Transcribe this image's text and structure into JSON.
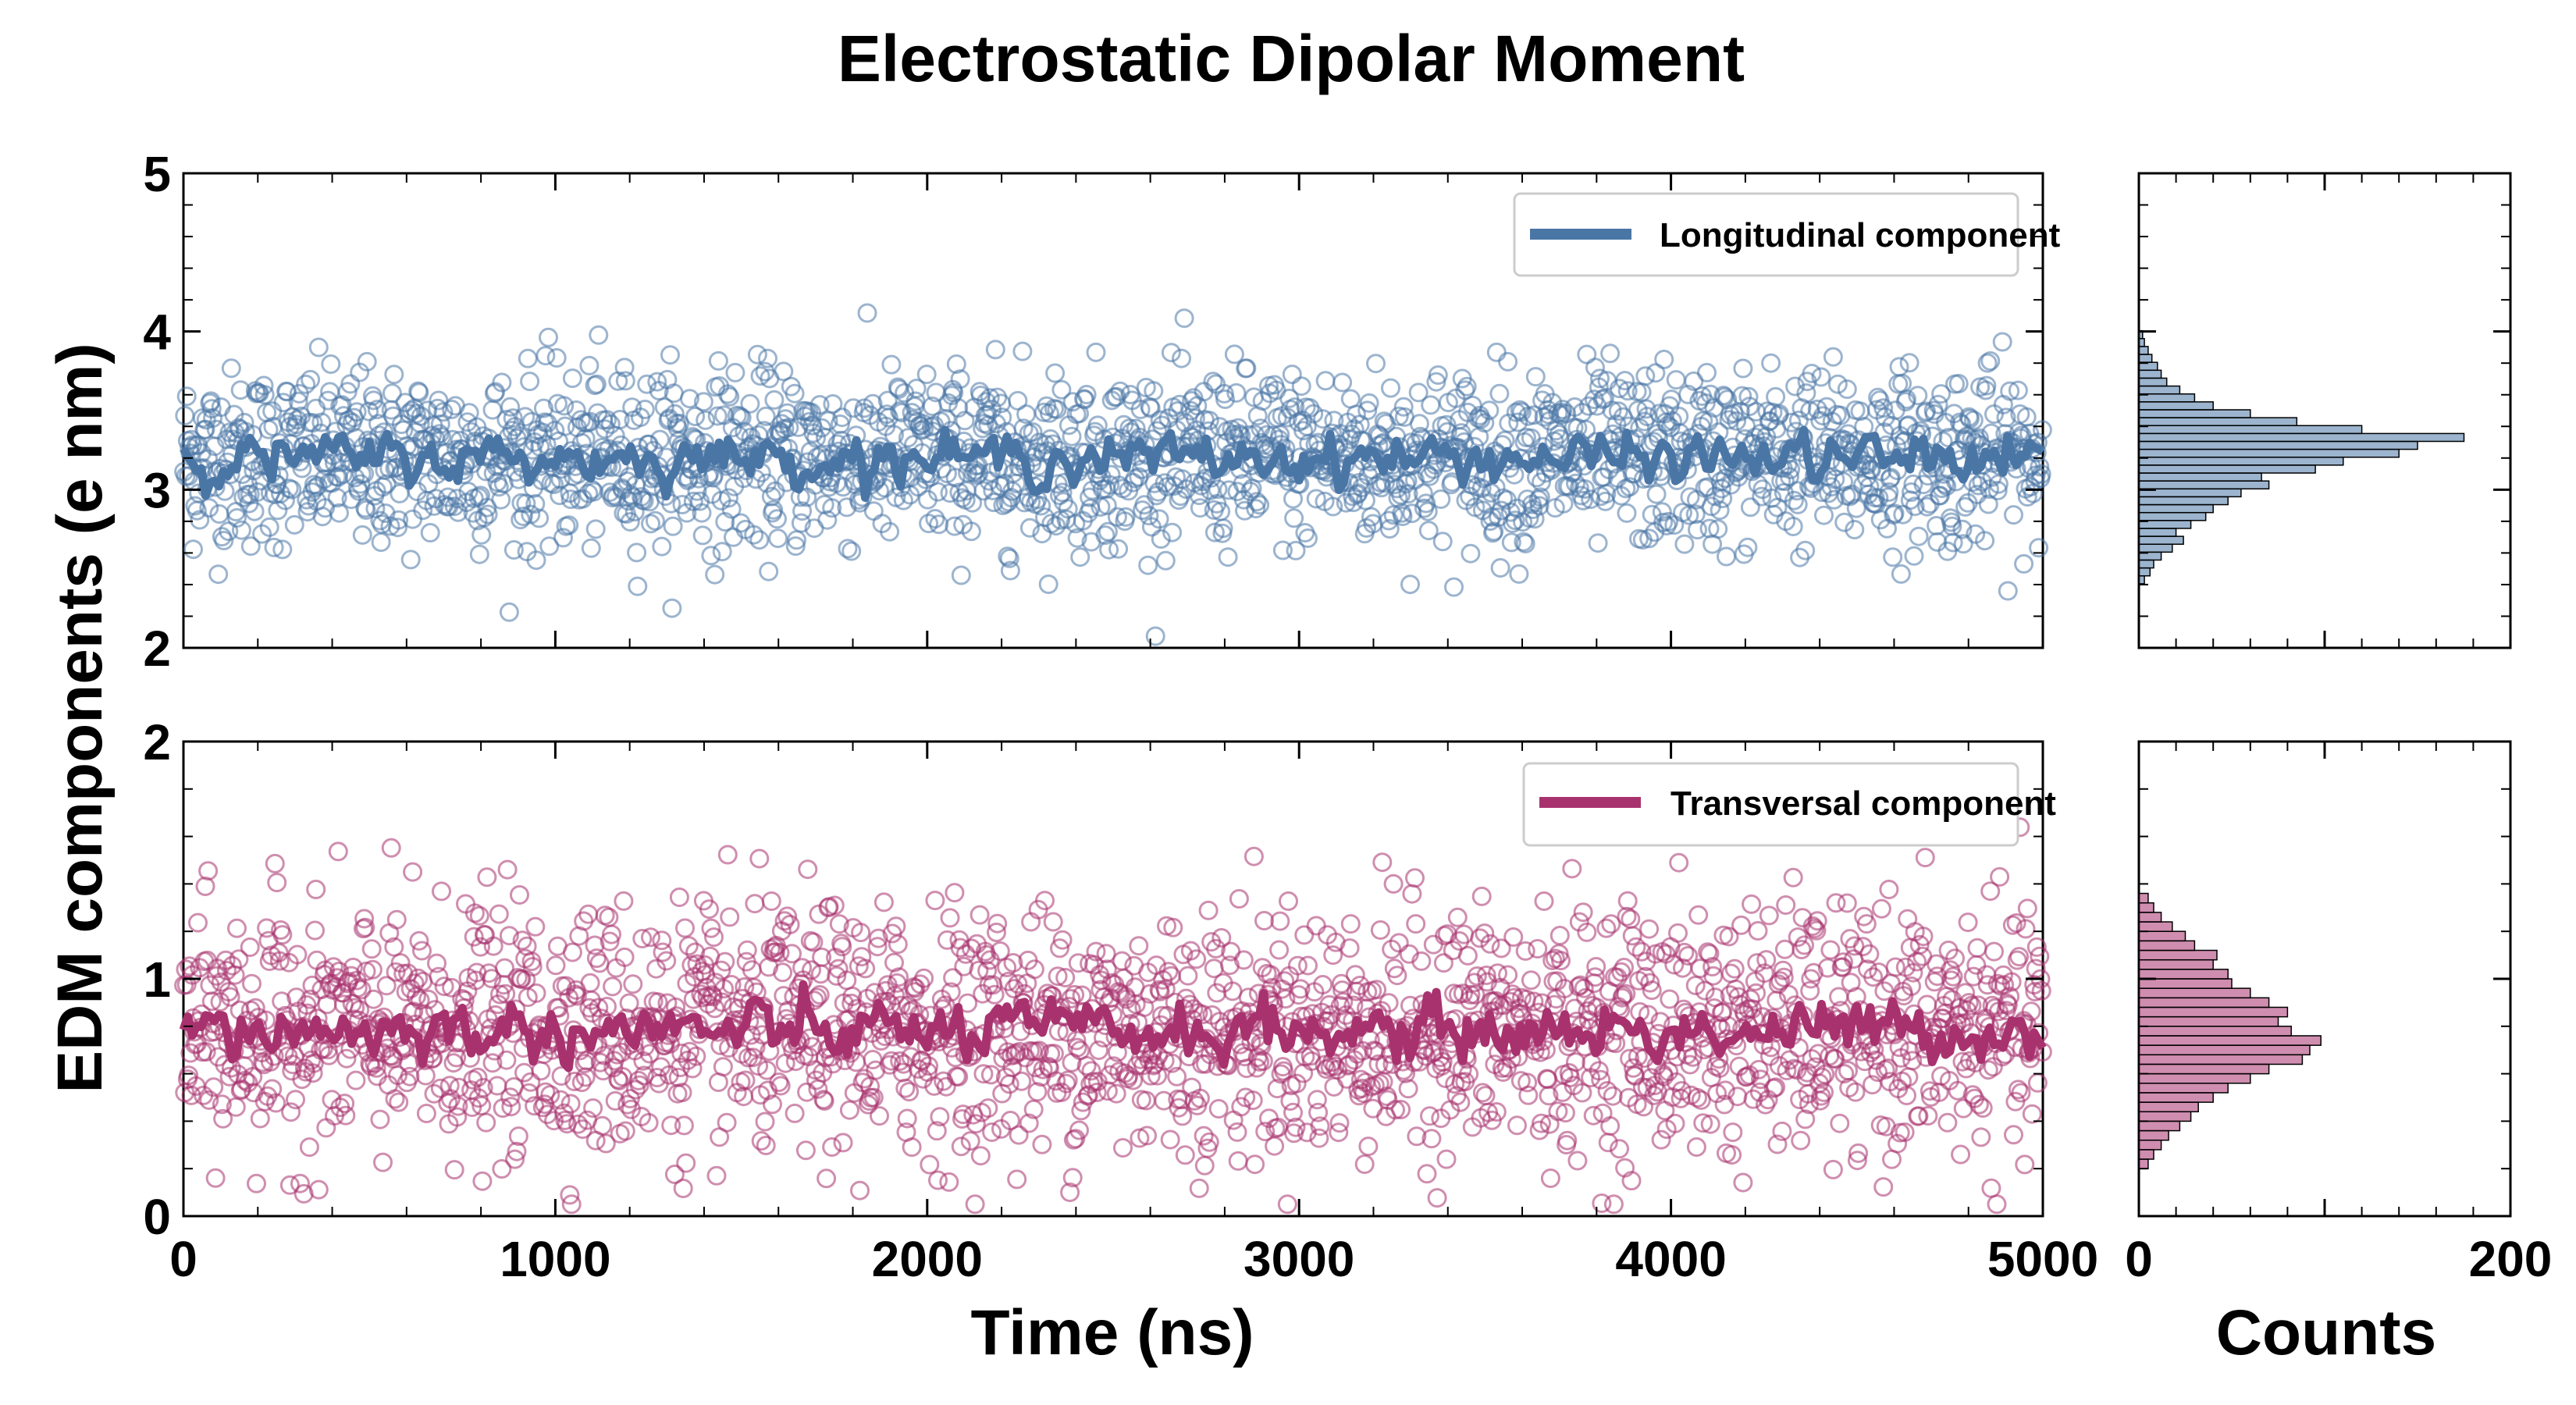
{
  "chart_data": {
    "type": "scatter",
    "title": "Electrostatic Dipolar Moment",
    "ylabel": "EDM components (e nm)",
    "xlabel": "Time (ns)",
    "hist_xlabel": "Counts",
    "xlim": [
      0,
      5000
    ],
    "xticks": [
      "0",
      "1000",
      "2000",
      "3000",
      "4000",
      "5000"
    ],
    "hist_xlim": [
      0,
      200
    ],
    "hist_xticks": [
      "0",
      "200"
    ],
    "n_points": 2000,
    "colors": {
      "longitudinal": "#4a76a6",
      "transversal": "#a8326e"
    },
    "panels": [
      {
        "name": "Longitudinal component",
        "ylim": [
          2,
          5
        ],
        "yticks": [
          "2",
          "3",
          "4",
          "5"
        ],
        "scatter_mean": 3.2,
        "scatter_std": 0.28,
        "smooth_mean": 3.2,
        "smooth_std": 0.12,
        "hist_bins": [
          {
            "y": 2.43,
            "count": 3
          },
          {
            "y": 2.48,
            "count": 6
          },
          {
            "y": 2.53,
            "count": 8
          },
          {
            "y": 2.58,
            "count": 12
          },
          {
            "y": 2.63,
            "count": 18
          },
          {
            "y": 2.68,
            "count": 24
          },
          {
            "y": 2.73,
            "count": 20
          },
          {
            "y": 2.78,
            "count": 28
          },
          {
            "y": 2.83,
            "count": 36
          },
          {
            "y": 2.88,
            "count": 40
          },
          {
            "y": 2.93,
            "count": 48
          },
          {
            "y": 2.98,
            "count": 55
          },
          {
            "y": 3.03,
            "count": 70
          },
          {
            "y": 3.08,
            "count": 66
          },
          {
            "y": 3.13,
            "count": 95
          },
          {
            "y": 3.18,
            "count": 110
          },
          {
            "y": 3.23,
            "count": 140
          },
          {
            "y": 3.28,
            "count": 150
          },
          {
            "y": 3.33,
            "count": 175
          },
          {
            "y": 3.38,
            "count": 120
          },
          {
            "y": 3.43,
            "count": 85
          },
          {
            "y": 3.48,
            "count": 60
          },
          {
            "y": 3.53,
            "count": 40
          },
          {
            "y": 3.58,
            "count": 30
          },
          {
            "y": 3.63,
            "count": 22
          },
          {
            "y": 3.68,
            "count": 15
          },
          {
            "y": 3.73,
            "count": 12
          },
          {
            "y": 3.78,
            "count": 10
          },
          {
            "y": 3.83,
            "count": 7
          },
          {
            "y": 3.88,
            "count": 5
          },
          {
            "y": 3.93,
            "count": 3
          },
          {
            "y": 3.98,
            "count": 2
          }
        ]
      },
      {
        "name": "Transversal component",
        "ylim": [
          0,
          2
        ],
        "yticks": [
          "0",
          "1",
          "2"
        ],
        "scatter_mean": 0.78,
        "scatter_std": 0.26,
        "smooth_mean": 0.78,
        "smooth_std": 0.1,
        "hist_bins": [
          {
            "y": 0.22,
            "count": 5
          },
          {
            "y": 0.26,
            "count": 8
          },
          {
            "y": 0.3,
            "count": 12
          },
          {
            "y": 0.34,
            "count": 16
          },
          {
            "y": 0.38,
            "count": 22
          },
          {
            "y": 0.42,
            "count": 28
          },
          {
            "y": 0.46,
            "count": 32
          },
          {
            "y": 0.5,
            "count": 40
          },
          {
            "y": 0.54,
            "count": 48
          },
          {
            "y": 0.58,
            "count": 60
          },
          {
            "y": 0.62,
            "count": 70
          },
          {
            "y": 0.66,
            "count": 88
          },
          {
            "y": 0.7,
            "count": 92
          },
          {
            "y": 0.74,
            "count": 98
          },
          {
            "y": 0.78,
            "count": 82
          },
          {
            "y": 0.82,
            "count": 75
          },
          {
            "y": 0.86,
            "count": 80
          },
          {
            "y": 0.9,
            "count": 70
          },
          {
            "y": 0.94,
            "count": 60
          },
          {
            "y": 0.98,
            "count": 50
          },
          {
            "y": 1.02,
            "count": 48
          },
          {
            "y": 1.06,
            "count": 40
          },
          {
            "y": 1.1,
            "count": 42
          },
          {
            "y": 1.14,
            "count": 30
          },
          {
            "y": 1.18,
            "count": 25
          },
          {
            "y": 1.22,
            "count": 18
          },
          {
            "y": 1.26,
            "count": 12
          },
          {
            "y": 1.3,
            "count": 8
          },
          {
            "y": 1.34,
            "count": 5
          }
        ]
      }
    ]
  }
}
